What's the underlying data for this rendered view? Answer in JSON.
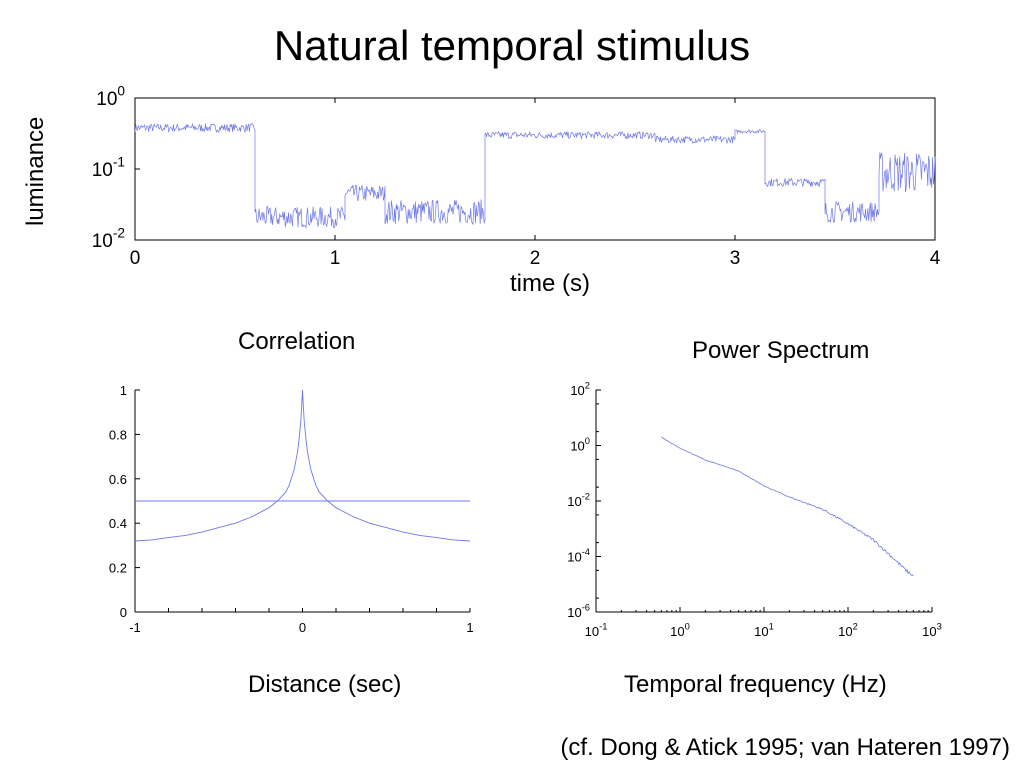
{
  "title": "Natural temporal stimulus",
  "citation": "(cf. Dong & Atick 1995; van Hateren 1997)",
  "colors": {
    "trace": "#6f78e8",
    "axis": "#000000"
  },
  "chart_data": [
    {
      "type": "line",
      "title": "",
      "xlabel": "time (s)",
      "ylabel": "luminance",
      "xlim": [
        0,
        4
      ],
      "ylim": [
        0.01,
        1
      ],
      "yscale": "log",
      "xticks": [
        0,
        1,
        2,
        3,
        4
      ],
      "xtick_labels": [
        "0",
        "1",
        "2",
        "3",
        "4"
      ],
      "yticks": [
        {
          "value": 1,
          "base": "10",
          "exp": "0"
        },
        {
          "value": 0.1,
          "base": "10",
          "exp": "-1"
        },
        {
          "value": 0.01,
          "base": "10",
          "exp": "-2"
        }
      ],
      "grid": false,
      "segments": [
        {
          "x": [
            0,
            0.6
          ],
          "level": 0.38,
          "noise": 0.12
        },
        {
          "x": [
            0.6,
            1.05
          ],
          "level": 0.021,
          "noise": 0.3
        },
        {
          "x": [
            1.05,
            1.25
          ],
          "level": 0.045,
          "noise": 0.25
        },
        {
          "x": [
            1.25,
            1.75
          ],
          "level": 0.025,
          "noise": 0.35
        },
        {
          "x": [
            1.75,
            2.6
          ],
          "level": 0.3,
          "noise": 0.1
        },
        {
          "x": [
            2.6,
            3.0
          ],
          "level": 0.26,
          "noise": 0.1
        },
        {
          "x": [
            3.0,
            3.15
          ],
          "level": 0.34,
          "noise": 0.05
        },
        {
          "x": [
            3.15,
            3.45
          ],
          "level": 0.065,
          "noise": 0.12
        },
        {
          "x": [
            3.45,
            3.72
          ],
          "level": 0.025,
          "noise": 0.3
        },
        {
          "x": [
            3.72,
            4.0
          ],
          "level": 0.09,
          "noise": 0.6
        }
      ]
    },
    {
      "type": "line",
      "title": "Correlation",
      "xlabel": "Distance (sec)",
      "ylabel": "",
      "xlim": [
        -1,
        1
      ],
      "ylim": [
        0,
        1
      ],
      "xticks": [
        -1,
        0,
        1
      ],
      "xtick_labels": [
        "-1",
        "0",
        "1"
      ],
      "yticks": [
        0,
        0.2,
        0.4,
        0.6,
        0.8,
        1
      ],
      "ytick_labels": [
        "0",
        "0.2",
        "0.4",
        "0.6",
        "0.8",
        "1"
      ],
      "grid": false,
      "series": [
        {
          "role": "correlation",
          "x": [
            0,
            0.005,
            0.01,
            0.02,
            0.03,
            0.05,
            0.08,
            0.1,
            0.15,
            0.2,
            0.3,
            0.4,
            0.5,
            0.6,
            0.7,
            0.8,
            0.9,
            1.0
          ],
          "y": [
            1.0,
            0.93,
            0.86,
            0.78,
            0.72,
            0.64,
            0.57,
            0.54,
            0.5,
            0.47,
            0.43,
            0.4,
            0.38,
            0.36,
            0.345,
            0.335,
            0.325,
            0.32
          ],
          "symmetric": true
        },
        {
          "role": "reference",
          "x": [
            -1,
            1
          ],
          "y": [
            0.5,
            0.5
          ]
        }
      ]
    },
    {
      "type": "line",
      "title": "Power Spectrum",
      "xlabel": "Temporal frequency (Hz)",
      "ylabel": "",
      "xscale": "log",
      "yscale": "log",
      "xlim": [
        0.1,
        1000
      ],
      "ylim": [
        1e-06,
        100
      ],
      "xticks": [
        {
          "value": 0.1,
          "base": "10",
          "exp": "-1"
        },
        {
          "value": 1,
          "base": "10",
          "exp": "0"
        },
        {
          "value": 10,
          "base": "10",
          "exp": "1"
        },
        {
          "value": 100,
          "base": "10",
          "exp": "2"
        },
        {
          "value": 1000,
          "base": "10",
          "exp": "3"
        }
      ],
      "yticks": [
        {
          "value": 100,
          "base": "10",
          "exp": "2"
        },
        {
          "value": 1,
          "base": "10",
          "exp": "0"
        },
        {
          "value": 0.01,
          "base": "10",
          "exp": "-2"
        },
        {
          "value": 0.0001,
          "base": "10",
          "exp": "-4"
        },
        {
          "value": 1e-06,
          "base": "10",
          "exp": "-6"
        }
      ],
      "grid": false,
      "series": [
        {
          "x": [
            0.6,
            1,
            2,
            3,
            5,
            10,
            20,
            50,
            100,
            200,
            300,
            500,
            600
          ],
          "y": [
            2,
            0.8,
            0.3,
            0.2,
            0.12,
            0.035,
            0.014,
            0.005,
            0.0015,
            0.0004,
            0.00013,
            3e-05,
            2e-05
          ]
        }
      ]
    }
  ]
}
